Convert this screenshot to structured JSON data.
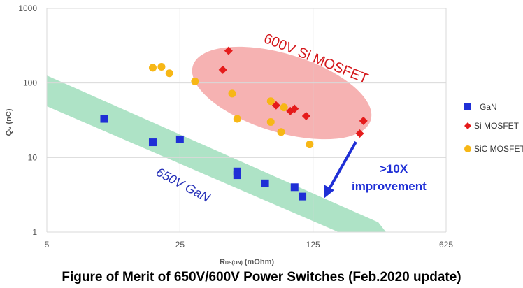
{
  "chart_data": {
    "type": "scatter",
    "xscale": "log",
    "yscale": "log",
    "xlim": [
      5,
      625
    ],
    "ylim": [
      1,
      1000
    ],
    "xticks": [
      "5",
      "25",
      "125",
      "625"
    ],
    "yticks": [
      "1",
      "10",
      "100",
      "1000"
    ],
    "grid": true,
    "legend_position": "right",
    "xlabel": {
      "main": "R",
      "sub": "DS(ON)",
      "rest": " (mOhm)"
    },
    "ylabel": {
      "main": "Q",
      "sub": "G",
      "rest": " (nC)"
    },
    "caption": "Figure of Merit of 650V/600V Power Switches (Feb.2020 update)",
    "series": [
      {
        "name": "GaN",
        "marker": "square",
        "color": "#1f2fd6",
        "points": [
          [
            10,
            33
          ],
          [
            18,
            16
          ],
          [
            25,
            17.5
          ],
          [
            50,
            6.5
          ],
          [
            50,
            5.8
          ],
          [
            70,
            4.5
          ],
          [
            100,
            4
          ],
          [
            110,
            3
          ]
        ]
      },
      {
        "name": "Si MOSFET",
        "marker": "diamond",
        "color": "#e51b1b",
        "points": [
          [
            45,
            270
          ],
          [
            42,
            150
          ],
          [
            80,
            50
          ],
          [
            95,
            42
          ],
          [
            100,
            45
          ],
          [
            115,
            36
          ],
          [
            230,
            31
          ],
          [
            220,
            21
          ]
        ]
      },
      {
        "name": "SiC MOSFET",
        "marker": "circle",
        "color": "#f7b716",
        "points": [
          [
            18,
            160
          ],
          [
            20,
            165
          ],
          [
            22,
            135
          ],
          [
            30,
            105
          ],
          [
            47,
            72
          ],
          [
            50,
            33
          ],
          [
            75,
            57
          ],
          [
            75,
            30
          ],
          [
            88,
            47
          ],
          [
            85,
            22
          ],
          [
            120,
            15
          ]
        ]
      }
    ],
    "annotations": {
      "si_region": "600V Si MOSFET",
      "gan_region": "650V GaN",
      "improvement_line1": ">10X",
      "improvement_line2": "improvement"
    },
    "colors": {
      "si_region_fill": "#f6b2b2",
      "gan_band_fill": "#aee3c6",
      "arrow": "#1f2fd6",
      "si_label": "#d4161a",
      "gan_label": "#2630b8",
      "improvement_label": "#1f2fd6",
      "grid": "#d9d9d9"
    }
  }
}
